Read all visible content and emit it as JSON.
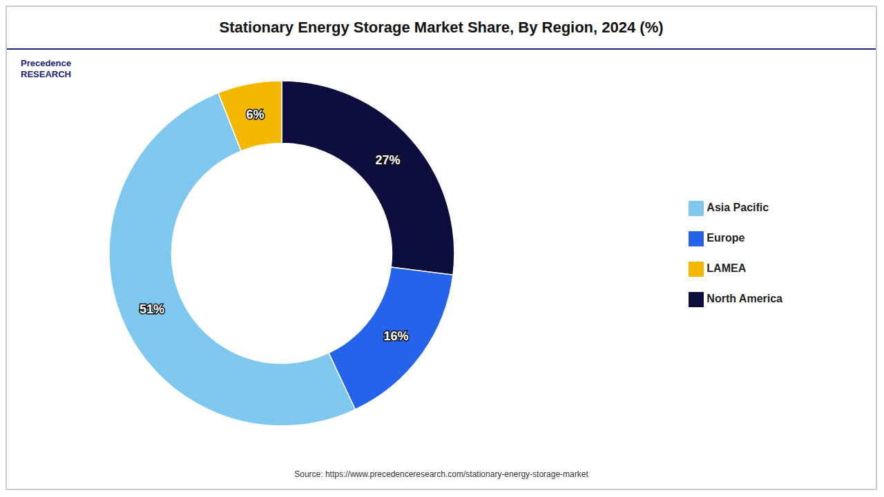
{
  "chart_data": {
    "type": "pie",
    "title": "Stationary Energy Storage Market Share, By Region, 2024 (%)",
    "categories": [
      "North America",
      "Europe",
      "Asia Pacific",
      "LAMEA"
    ],
    "values": [
      27,
      16,
      51,
      6
    ],
    "value_labels": [
      "27%",
      "16%",
      "51%",
      "6%"
    ],
    "colors": [
      "#0d0d3d",
      "#2563eb",
      "#7ec8f0",
      "#f5b800"
    ],
    "data_labels": true,
    "legend": "right",
    "annotations": [
      "Precedence\nRESEARCH",
      "Source: https://www.precedenceresearch.com/stationary-energy-storage-market"
    ]
  }
}
